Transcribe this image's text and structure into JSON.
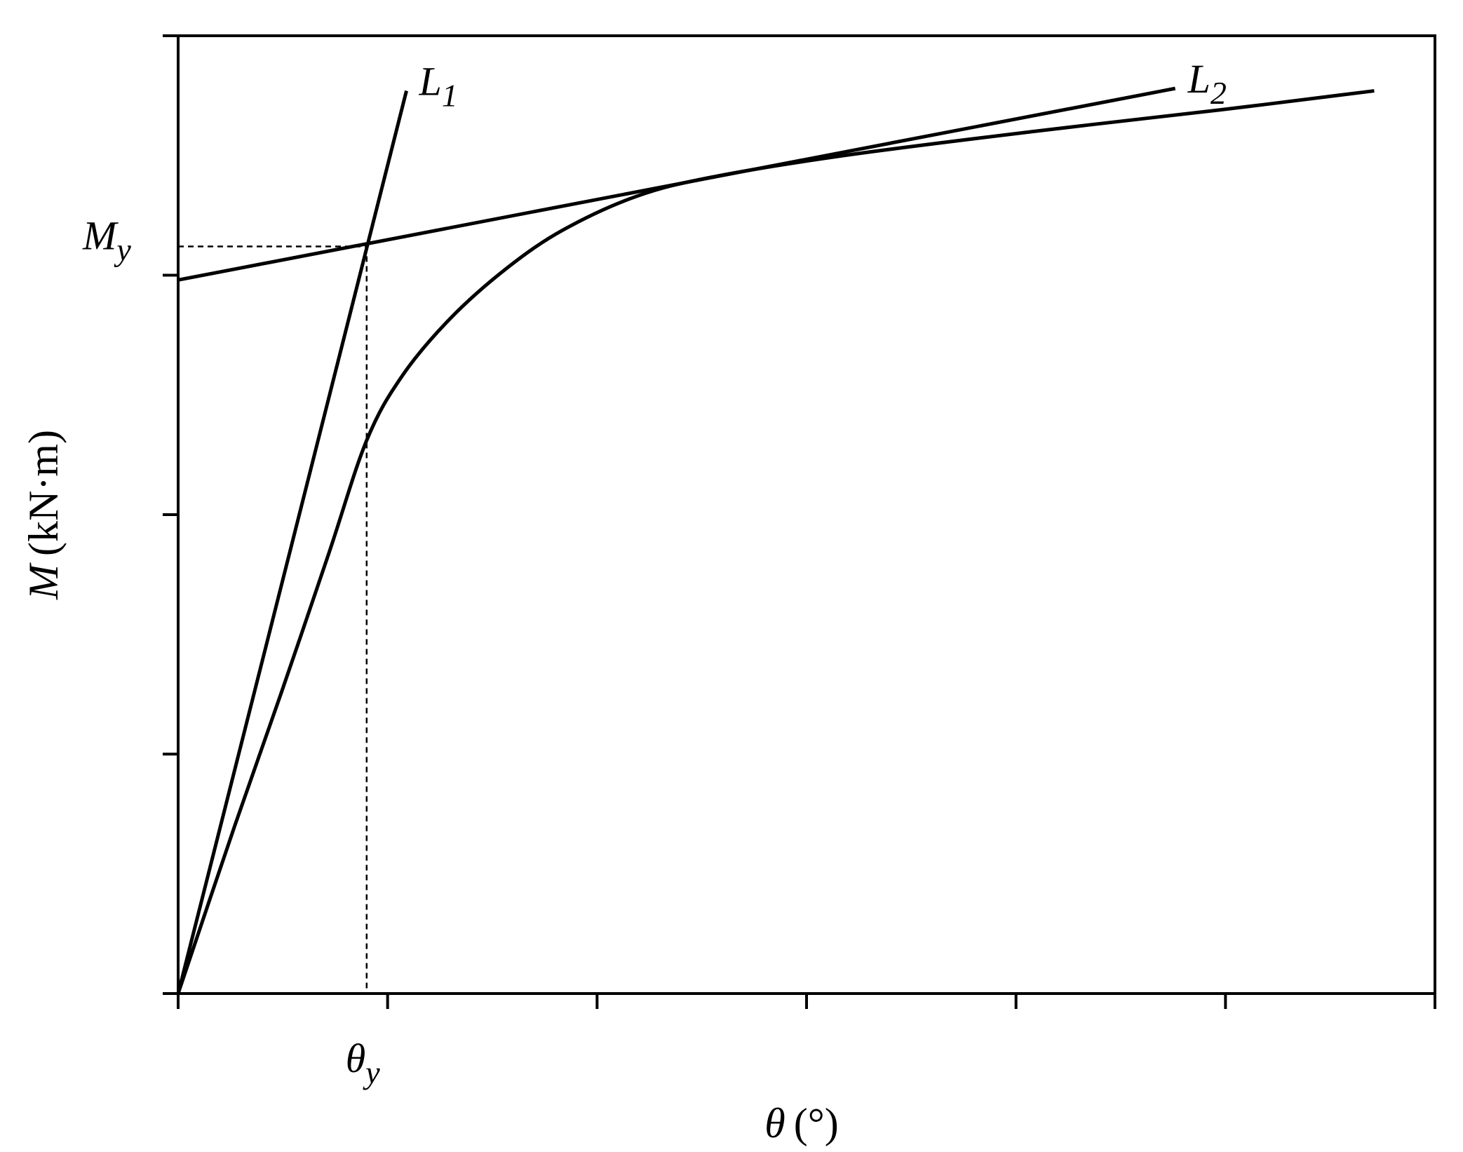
{
  "chart_data": {
    "type": "line",
    "x_title": {
      "symbol": "θ",
      "unit": "(°)"
    },
    "y_title": {
      "symbol": "M",
      "unit": "(kN·m)"
    },
    "xlim": [
      0,
      6
    ],
    "ylim": [
      0,
      4
    ],
    "xticks": [
      0,
      1,
      2,
      3,
      4,
      5,
      6
    ],
    "yticks": [
      0,
      1,
      2,
      3,
      4
    ],
    "show_tick_labels": false,
    "color": "#000000",
    "x": [
      0,
      0.27,
      0.49,
      0.72,
      0.9,
      1.07,
      1.3,
      1.57,
      1.84,
      2.19,
      2.55,
      3.18,
      4.08,
      4.97,
      5.71
    ],
    "values": [
      0,
      0.7,
      1.25,
      1.84,
      2.31,
      2.58,
      2.82,
      3.03,
      3.19,
      3.33,
      3.41,
      3.5,
      3.6,
      3.69,
      3.77
    ],
    "lines": [
      {
        "name": "L",
        "subscript": "1",
        "x": [
          0,
          1.09
        ],
        "y": [
          0,
          3.77
        ]
      },
      {
        "name": "L",
        "subscript": "2",
        "x": [
          0,
          4.76
        ],
        "y": [
          2.98,
          3.78
        ]
      }
    ],
    "yield_point": {
      "x": 0.9,
      "y": 3.12,
      "x_label": {
        "symbol": "θ",
        "subscript": "y"
      },
      "y_label": {
        "symbol": "M",
        "subscript": "y"
      }
    }
  }
}
